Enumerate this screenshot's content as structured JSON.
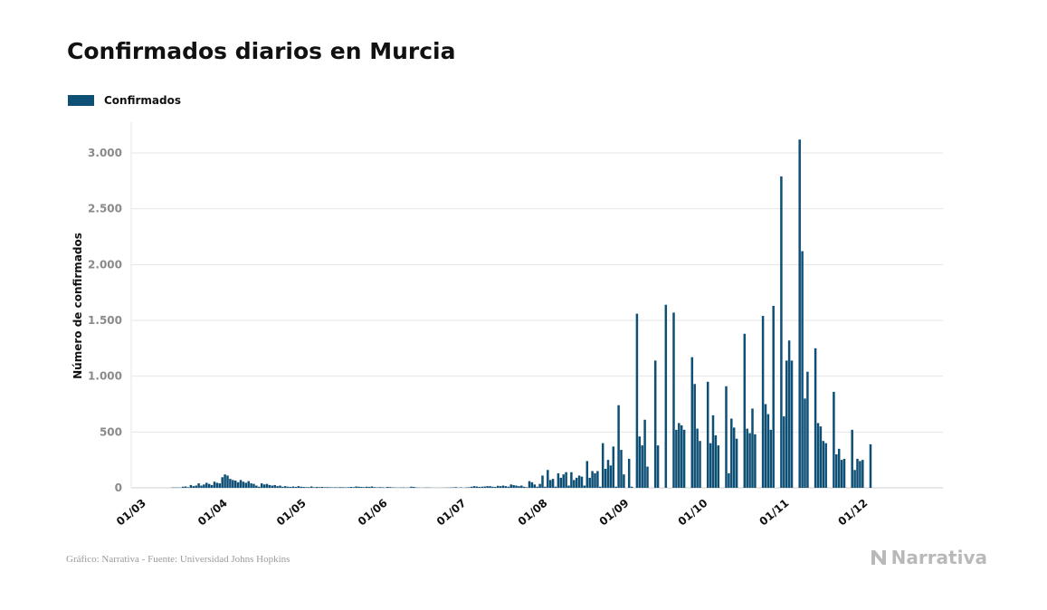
{
  "title": "Confirmados diarios en Murcia",
  "legend": {
    "label": "Confirmados"
  },
  "footer": {
    "source": "Gráfico: Narrativa - Fuente: Universidad Johns Hopkins",
    "brand": "Narrativa"
  },
  "colors": {
    "bar": "#0e4f75",
    "grid": "#e6e6e6",
    "brand": "#b9b9b9"
  },
  "chart_data": {
    "type": "bar",
    "title": "Confirmados diarios en Murcia",
    "xlabel": "",
    "ylabel": "Número de confirmados",
    "ylim": [
      0,
      3250
    ],
    "yticks": [
      0,
      500,
      1000,
      1500,
      2000,
      2500,
      3000
    ],
    "ytick_labels": [
      "0",
      "500",
      "1.000",
      "1.500",
      "2.000",
      "2.500",
      "3.000"
    ],
    "xtick_labels": [
      "01/03",
      "01/04",
      "01/05",
      "01/06",
      "01/07",
      "01/08",
      "01/09",
      "01/10",
      "01/11",
      "01/12"
    ],
    "xtick_day_offsets": [
      0,
      31,
      61,
      92,
      122,
      153,
      184,
      214,
      245,
      275
    ],
    "grid": true,
    "legend_position": "top-left",
    "series": [
      {
        "name": "Confirmados",
        "first_date": "2020-03-01",
        "values": [
          0,
          0,
          0,
          0,
          0,
          0,
          0,
          0,
          0,
          0,
          0,
          0,
          0,
          0,
          3,
          3,
          3,
          2,
          10,
          12,
          5,
          25,
          15,
          20,
          40,
          20,
          30,
          45,
          35,
          25,
          55,
          45,
          40,
          95,
          120,
          110,
          80,
          70,
          65,
          50,
          70,
          55,
          45,
          60,
          40,
          35,
          20,
          10,
          40,
          30,
          35,
          25,
          20,
          25,
          15,
          20,
          10,
          15,
          10,
          8,
          12,
          8,
          15,
          10,
          8,
          6,
          6,
          12,
          5,
          8,
          6,
          8,
          5,
          6,
          5,
          4,
          5,
          4,
          6,
          5,
          4,
          5,
          8,
          6,
          12,
          10,
          8,
          6,
          10,
          8,
          12,
          6,
          4,
          6,
          5,
          3,
          8,
          6,
          4,
          3,
          2,
          3,
          4,
          2,
          3,
          10,
          8,
          3,
          2,
          1,
          2,
          3,
          2,
          1,
          1,
          1,
          1,
          1,
          2,
          2,
          3,
          4,
          6,
          2,
          4,
          1,
          4,
          5,
          10,
          15,
          12,
          8,
          10,
          12,
          15,
          15,
          10,
          8,
          18,
          15,
          20,
          15,
          10,
          30,
          25,
          20,
          15,
          20,
          10,
          5,
          60,
          50,
          30,
          10,
          35,
          110,
          10,
          160,
          70,
          80,
          10,
          130,
          90,
          120,
          140,
          20,
          140,
          70,
          90,
          110,
          100,
          20,
          240,
          90,
          150,
          130,
          150,
          10,
          400,
          170,
          250,
          200,
          370,
          10,
          740,
          340,
          120,
          0,
          260,
          10,
          0,
          1560,
          460,
          380,
          610,
          190,
          0,
          0,
          1140,
          380,
          0,
          0,
          1640,
          0,
          0,
          1570,
          520,
          580,
          560,
          520,
          0,
          0,
          1170,
          930,
          530,
          420,
          0,
          0,
          950,
          400,
          650,
          470,
          380,
          0,
          0,
          910,
          130,
          620,
          540,
          440,
          0,
          0,
          1380,
          530,
          490,
          710,
          480,
          0,
          0,
          1540,
          750,
          660,
          520,
          1630,
          0,
          0,
          2790,
          640,
          1140,
          1320,
          1140,
          0,
          0,
          3120,
          2120,
          800,
          1040,
          0,
          0,
          1250,
          580,
          550,
          420,
          400,
          0,
          0,
          860,
          300,
          350,
          250,
          260,
          0,
          0,
          520,
          160,
          260,
          240,
          250,
          0,
          0,
          390
        ]
      }
    ]
  }
}
